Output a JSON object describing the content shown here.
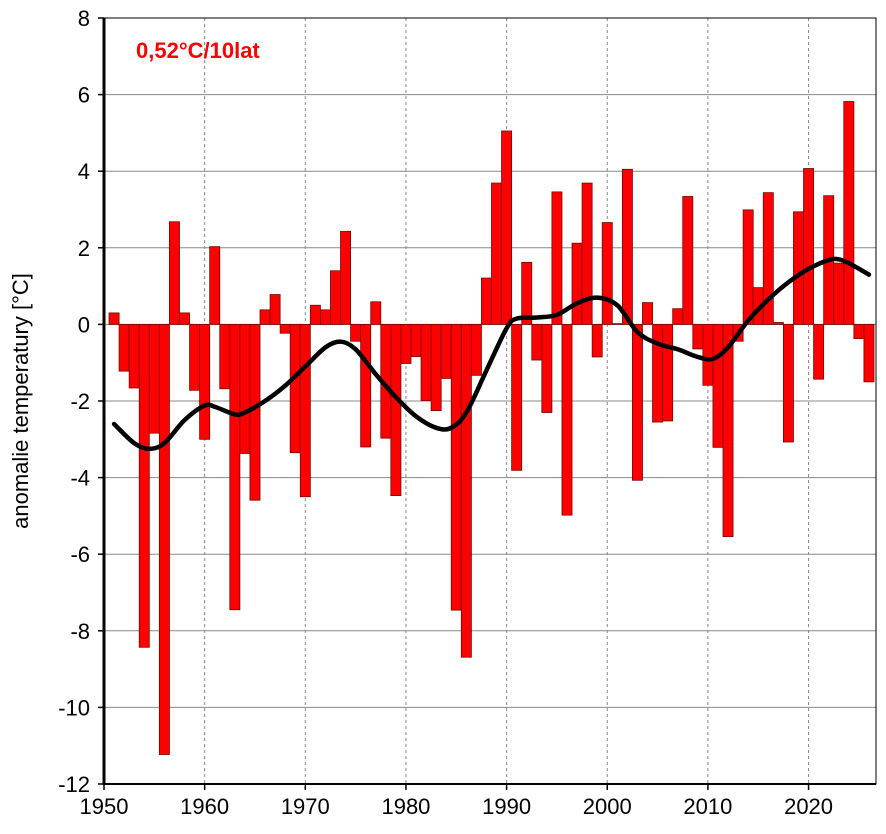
{
  "chart_data": {
    "type": "bar",
    "title": "",
    "annotation": "0,52°C/10lat",
    "xlabel": "",
    "ylabel": "anomalie temperatury [°C]",
    "xlim": [
      1950,
      2026.7
    ],
    "ylim": [
      -12,
      8
    ],
    "xticks": [
      "1950",
      "1960",
      "1970",
      "1980",
      "1990",
      "2000",
      "2010",
      "2020"
    ],
    "yticks": [
      "8",
      "6",
      "4",
      "2",
      "0",
      "-2",
      "-4",
      "-6",
      "-8",
      "-10",
      "-12"
    ],
    "grid": true,
    "colors": {
      "bars": "#ff0000",
      "trend": "#000000",
      "annotation": "#ff0000",
      "grid": "#888888"
    },
    "years": [
      1951,
      1952,
      1953,
      1954,
      1955,
      1956,
      1957,
      1958,
      1959,
      1960,
      1961,
      1962,
      1963,
      1964,
      1965,
      1966,
      1967,
      1968,
      1969,
      1970,
      1971,
      1972,
      1973,
      1974,
      1975,
      1976,
      1977,
      1978,
      1979,
      1980,
      1981,
      1982,
      1983,
      1984,
      1985,
      1986,
      1987,
      1988,
      1989,
      1990,
      1991,
      1992,
      1993,
      1994,
      1995,
      1996,
      1997,
      1998,
      1999,
      2000,
      2001,
      2002,
      2003,
      2004,
      2005,
      2006,
      2007,
      2008,
      2009,
      2010,
      2011,
      2012,
      2013,
      2014,
      2015,
      2016,
      2017,
      2018,
      2019,
      2020,
      2021,
      2022,
      2023,
      2024,
      2025,
      2026
    ],
    "values": [
      0.3,
      -1.22,
      -1.66,
      -8.43,
      -2.84,
      -11.23,
      2.68,
      0.3,
      -1.72,
      -3.0,
      2.03,
      -1.68,
      -7.45,
      -3.37,
      -4.59,
      0.38,
      0.78,
      -0.23,
      -3.35,
      -4.5,
      0.5,
      0.38,
      1.4,
      2.43,
      -0.44,
      -3.2,
      0.59,
      -2.97,
      -4.47,
      -1.02,
      -0.84,
      -1.99,
      -2.25,
      -1.41,
      -7.46,
      -8.69,
      -1.33,
      1.21,
      3.69,
      5.05,
      -3.81,
      1.62,
      -0.93,
      -2.3,
      3.46,
      -4.98,
      2.12,
      3.69,
      -0.85,
      2.66,
      0.02,
      4.05,
      -4.07,
      0.57,
      -2.55,
      -2.52,
      0.41,
      3.34,
      -0.64,
      -1.59,
      -3.21,
      -5.54,
      -0.44,
      2.99,
      0.96,
      3.44,
      0.05,
      -3.07,
      2.94,
      4.07,
      -1.43,
      3.36,
      1.6,
      5.82,
      -0.37,
      -1.5
    ],
    "trend": {
      "x": [
        1951,
        1953,
        1954.5,
        1956,
        1958,
        1960,
        1961,
        1963,
        1964,
        1966,
        1968,
        1970,
        1972,
        1973.5,
        1975,
        1977,
        1979,
        1981,
        1983,
        1984.5,
        1986,
        1988,
        1990,
        1991,
        1993,
        1995,
        1997,
        1999,
        2001,
        2003,
        2005,
        2007,
        2009,
        2010.5,
        2012,
        2014,
        2016,
        2018,
        2020,
        2022,
        2023,
        2024,
        2026
      ],
      "y": [
        -2.6,
        -3.1,
        -3.25,
        -3.1,
        -2.5,
        -2.12,
        -2.15,
        -2.35,
        -2.3,
        -2.0,
        -1.6,
        -1.1,
        -0.6,
        -0.45,
        -0.65,
        -1.3,
        -1.9,
        -2.4,
        -2.7,
        -2.7,
        -2.3,
        -1.2,
        -0.1,
        0.15,
        0.18,
        0.25,
        0.55,
        0.7,
        0.5,
        -0.2,
        -0.5,
        -0.65,
        -0.85,
        -0.9,
        -0.6,
        0.1,
        0.65,
        1.1,
        1.45,
        1.68,
        1.7,
        1.6,
        1.3
      ]
    }
  }
}
